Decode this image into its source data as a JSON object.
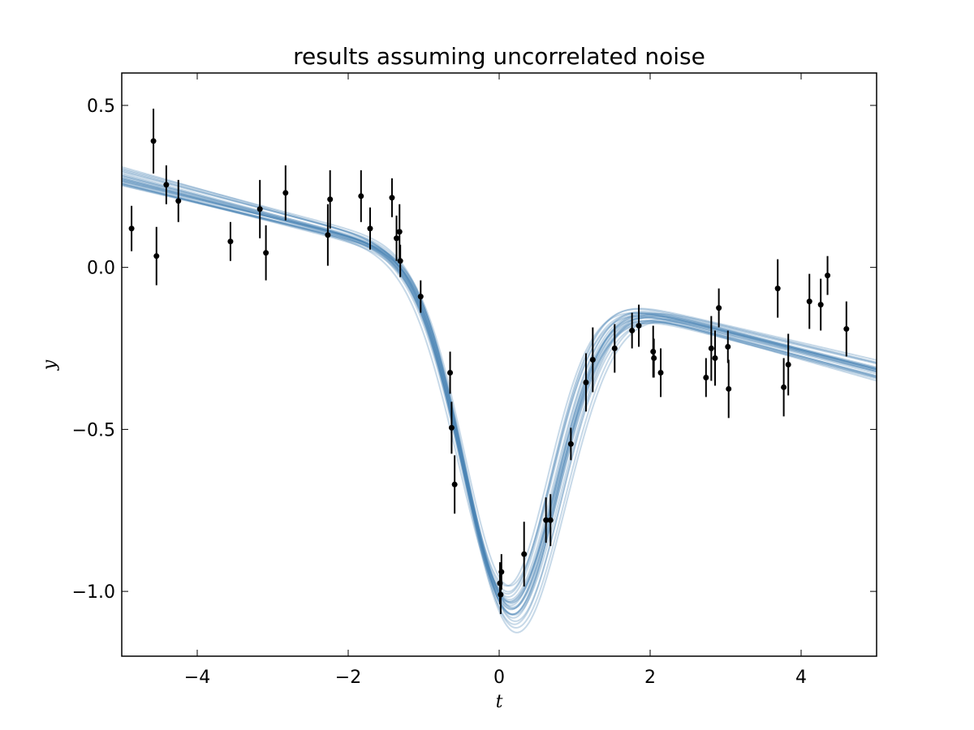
{
  "chart_data": {
    "type": "scatter",
    "title": "results assuming uncorrelated noise",
    "xlabel": "t",
    "ylabel": "y",
    "xlim": [
      -5,
      5
    ],
    "ylim": [
      -1.2,
      0.6
    ],
    "xticks": [
      -4,
      -2,
      0,
      2,
      4
    ],
    "xtick_labels": [
      "−4",
      "−2",
      "0",
      "2",
      "4"
    ],
    "yticks": [
      0.5,
      0.0,
      -0.5,
      -1.0
    ],
    "ytick_labels": [
      "0.5",
      "0.0",
      "−0.5",
      "−1.0"
    ],
    "grid": false,
    "colors": {
      "points": "#000000",
      "model": "#4682b4"
    },
    "points": [
      {
        "x": -4.87,
        "y": 0.12,
        "err": 0.07
      },
      {
        "x": -4.58,
        "y": 0.39,
        "err": 0.1
      },
      {
        "x": -4.54,
        "y": 0.035,
        "err": 0.09
      },
      {
        "x": -4.41,
        "y": 0.255,
        "err": 0.06
      },
      {
        "x": -4.25,
        "y": 0.205,
        "err": 0.065
      },
      {
        "x": -3.56,
        "y": 0.08,
        "err": 0.06
      },
      {
        "x": -3.17,
        "y": 0.18,
        "err": 0.09
      },
      {
        "x": -3.09,
        "y": 0.045,
        "err": 0.085
      },
      {
        "x": -2.83,
        "y": 0.23,
        "err": 0.085
      },
      {
        "x": -2.27,
        "y": 0.1,
        "err": 0.095
      },
      {
        "x": -2.24,
        "y": 0.21,
        "err": 0.09
      },
      {
        "x": -1.83,
        "y": 0.22,
        "err": 0.08
      },
      {
        "x": -1.71,
        "y": 0.12,
        "err": 0.065
      },
      {
        "x": -1.42,
        "y": 0.215,
        "err": 0.06
      },
      {
        "x": -1.36,
        "y": 0.09,
        "err": 0.07
      },
      {
        "x": -1.32,
        "y": 0.11,
        "err": 0.085
      },
      {
        "x": -1.31,
        "y": 0.02,
        "err": 0.05
      },
      {
        "x": -1.04,
        "y": -0.09,
        "err": 0.05
      },
      {
        "x": -0.65,
        "y": -0.325,
        "err": 0.065
      },
      {
        "x": -0.63,
        "y": -0.495,
        "err": 0.08
      },
      {
        "x": -0.59,
        "y": -0.67,
        "err": 0.09
      },
      {
        "x": 0.01,
        "y": -0.975,
        "err": 0.065
      },
      {
        "x": 0.02,
        "y": -1.01,
        "err": 0.06
      },
      {
        "x": 0.03,
        "y": -0.94,
        "err": 0.055
      },
      {
        "x": 0.33,
        "y": -0.885,
        "err": 0.1
      },
      {
        "x": 0.62,
        "y": -0.78,
        "err": 0.07
      },
      {
        "x": 0.68,
        "y": -0.78,
        "err": 0.08
      },
      {
        "x": 0.95,
        "y": -0.545,
        "err": 0.05
      },
      {
        "x": 1.15,
        "y": -0.355,
        "err": 0.09
      },
      {
        "x": 1.24,
        "y": -0.285,
        "err": 0.1
      },
      {
        "x": 1.53,
        "y": -0.25,
        "err": 0.075
      },
      {
        "x": 1.76,
        "y": -0.195,
        "err": 0.055
      },
      {
        "x": 1.85,
        "y": -0.18,
        "err": 0.065
      },
      {
        "x": 2.04,
        "y": -0.26,
        "err": 0.08
      },
      {
        "x": 2.05,
        "y": -0.28,
        "err": 0.06
      },
      {
        "x": 2.14,
        "y": -0.325,
        "err": 0.075
      },
      {
        "x": 2.74,
        "y": -0.34,
        "err": 0.06
      },
      {
        "x": 2.81,
        "y": -0.25,
        "err": 0.1
      },
      {
        "x": 2.86,
        "y": -0.28,
        "err": 0.085
      },
      {
        "x": 2.91,
        "y": -0.125,
        "err": 0.06
      },
      {
        "x": 3.03,
        "y": -0.245,
        "err": 0.05
      },
      {
        "x": 3.04,
        "y": -0.375,
        "err": 0.09
      },
      {
        "x": 3.69,
        "y": -0.065,
        "err": 0.09
      },
      {
        "x": 3.77,
        "y": -0.37,
        "err": 0.09
      },
      {
        "x": 3.83,
        "y": -0.3,
        "err": 0.095
      },
      {
        "x": 4.11,
        "y": -0.105,
        "err": 0.085
      },
      {
        "x": 4.26,
        "y": -0.115,
        "err": 0.08
      },
      {
        "x": 4.35,
        "y": -0.025,
        "err": 0.06
      },
      {
        "x": 4.6,
        "y": -0.19,
        "err": 0.085
      }
    ],
    "model_samples": [
      {
        "m": -0.06,
        "b": -0.022,
        "amp": -1.04,
        "loc": 0.15,
        "sig": 0.62
      },
      {
        "m": -0.058,
        "b": -0.018,
        "amp": -1.0,
        "loc": 0.12,
        "sig": 0.6
      },
      {
        "m": -0.061,
        "b": -0.03,
        "amp": -1.06,
        "loc": 0.18,
        "sig": 0.64
      },
      {
        "m": -0.056,
        "b": -0.015,
        "amp": -0.98,
        "loc": 0.1,
        "sig": 0.58
      },
      {
        "m": -0.063,
        "b": -0.025,
        "amp": -1.02,
        "loc": 0.14,
        "sig": 0.63
      },
      {
        "m": -0.059,
        "b": -0.02,
        "amp": -1.08,
        "loc": 0.2,
        "sig": 0.66
      },
      {
        "m": -0.057,
        "b": -0.028,
        "amp": -0.95,
        "loc": 0.08,
        "sig": 0.57
      },
      {
        "m": -0.062,
        "b": -0.012,
        "amp": -1.03,
        "loc": 0.16,
        "sig": 0.61
      },
      {
        "m": -0.06,
        "b": -0.035,
        "amp": -0.99,
        "loc": 0.11,
        "sig": 0.65
      },
      {
        "m": -0.055,
        "b": -0.022,
        "amp": -1.05,
        "loc": 0.17,
        "sig": 0.6
      },
      {
        "m": -0.064,
        "b": -0.018,
        "amp": -1.01,
        "loc": 0.13,
        "sig": 0.62
      },
      {
        "m": -0.058,
        "b": -0.032,
        "amp": -0.97,
        "loc": 0.09,
        "sig": 0.59
      },
      {
        "m": -0.061,
        "b": -0.01,
        "amp": -1.07,
        "loc": 0.19,
        "sig": 0.64
      },
      {
        "m": -0.057,
        "b": -0.026,
        "amp": -1.0,
        "loc": 0.14,
        "sig": 0.61
      },
      {
        "m": -0.066,
        "b": -0.02,
        "amp": -1.04,
        "loc": 0.15,
        "sig": 0.63
      },
      {
        "m": -0.054,
        "b": -0.016,
        "amp": -0.96,
        "loc": 0.12,
        "sig": 0.58
      },
      {
        "m": -0.06,
        "b": -0.04,
        "amp": -1.02,
        "loc": 0.16,
        "sig": 0.62
      },
      {
        "m": -0.062,
        "b": -0.005,
        "amp": -1.03,
        "loc": 0.13,
        "sig": 0.6
      },
      {
        "m": -0.059,
        "b": -0.024,
        "amp": -1.09,
        "loc": 0.21,
        "sig": 0.67
      },
      {
        "m": -0.058,
        "b": -0.021,
        "amp": -0.99,
        "loc": 0.1,
        "sig": 0.59
      },
      {
        "m": -0.063,
        "b": -0.029,
        "amp": -1.01,
        "loc": 0.15,
        "sig": 0.61
      },
      {
        "m": -0.056,
        "b": -0.013,
        "amp": -1.05,
        "loc": 0.17,
        "sig": 0.65
      },
      {
        "m": -0.061,
        "b": -0.023,
        "amp": -1.0,
        "loc": 0.12,
        "sig": 0.62
      },
      {
        "m": -0.06,
        "b": -0.017,
        "amp": -1.03,
        "loc": 0.14,
        "sig": 0.6
      }
    ]
  }
}
